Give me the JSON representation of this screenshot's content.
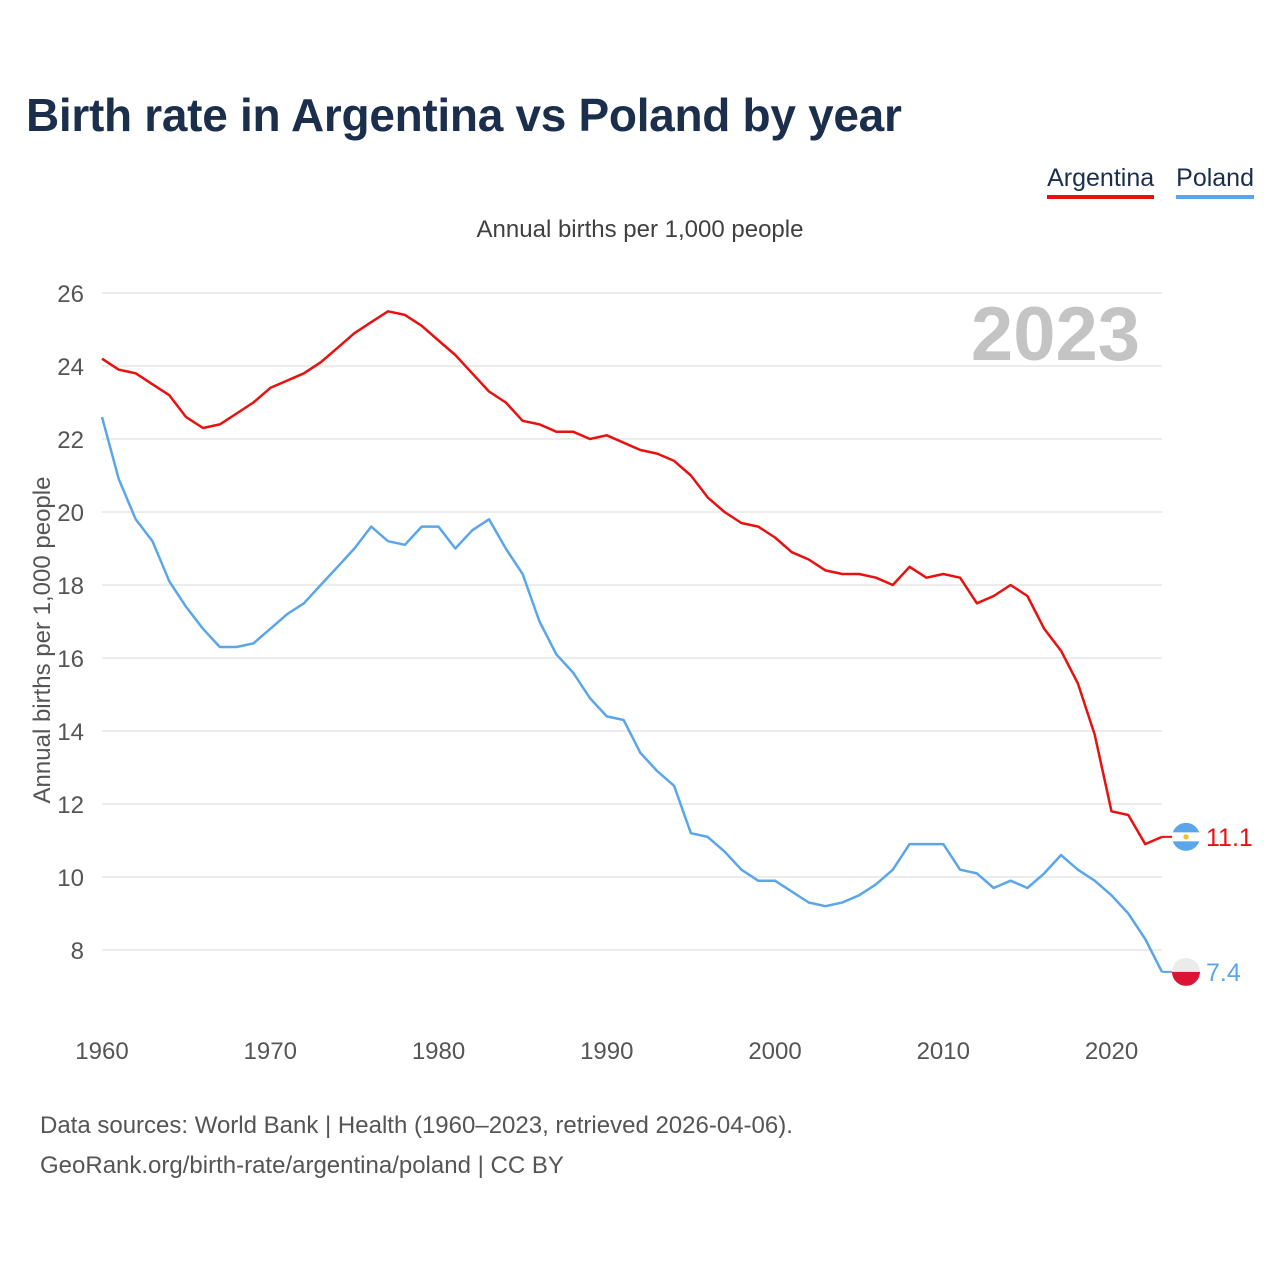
{
  "title": "Birth rate in Argentina vs Poland by year",
  "legend": {
    "argentina": "Argentina",
    "poland": "Poland"
  },
  "subtitle": "Annual births per 1,000 people",
  "year_label": "2023",
  "source": {
    "line1": "Data sources: World Bank | Health (1960–2023, retrieved 2026-04-06).",
    "line2": "GeoRank.org/birth-rate/argentina/poland | CC BY"
  },
  "colors": {
    "argentina": "#e8110f",
    "poland": "#5aa6e8",
    "grid": "#e6e6e6",
    "axis_text": "#555555",
    "year": "#c4c4c4"
  },
  "chart_data": {
    "type": "line",
    "title": "Birth rate in Argentina vs Poland by year",
    "xlabel": "",
    "ylabel": "Annual births per 1,000 people",
    "xlim": [
      1960,
      2023
    ],
    "ylim": [
      6.5,
      26
    ],
    "yticks": [
      8,
      10,
      12,
      14,
      16,
      18,
      20,
      22,
      24,
      26
    ],
    "xticks": [
      1960,
      1970,
      1980,
      1990,
      2000,
      2010,
      2020
    ],
    "x": [
      1960,
      1961,
      1962,
      1963,
      1964,
      1965,
      1966,
      1967,
      1968,
      1969,
      1970,
      1971,
      1972,
      1973,
      1974,
      1975,
      1976,
      1977,
      1978,
      1979,
      1980,
      1981,
      1982,
      1983,
      1984,
      1985,
      1986,
      1987,
      1988,
      1989,
      1990,
      1991,
      1992,
      1993,
      1994,
      1995,
      1996,
      1997,
      1998,
      1999,
      2000,
      2001,
      2002,
      2003,
      2004,
      2005,
      2006,
      2007,
      2008,
      2009,
      2010,
      2011,
      2012,
      2013,
      2014,
      2015,
      2016,
      2017,
      2018,
      2019,
      2020,
      2021,
      2022,
      2023
    ],
    "series": [
      {
        "name": "Argentina",
        "end_label": "11.1",
        "values": [
          24.2,
          23.9,
          23.8,
          23.5,
          23.2,
          22.6,
          22.3,
          22.4,
          22.7,
          23.0,
          23.4,
          23.6,
          23.8,
          24.1,
          24.5,
          24.9,
          25.2,
          25.5,
          25.4,
          25.1,
          24.7,
          24.3,
          23.8,
          23.3,
          23.0,
          22.5,
          22.4,
          22.2,
          22.2,
          22.0,
          22.1,
          21.9,
          21.7,
          21.6,
          21.4,
          21.0,
          20.4,
          20.0,
          19.7,
          19.6,
          19.3,
          18.9,
          18.7,
          18.4,
          18.3,
          18.3,
          18.2,
          18.0,
          18.5,
          18.2,
          18.3,
          18.2,
          17.5,
          17.7,
          18.0,
          17.7,
          16.8,
          16.2,
          15.3,
          13.9,
          11.8,
          11.7,
          10.9,
          11.1
        ]
      },
      {
        "name": "Poland",
        "end_label": "7.4",
        "values": [
          22.6,
          20.9,
          19.8,
          19.2,
          18.1,
          17.4,
          16.8,
          16.3,
          16.3,
          16.4,
          16.8,
          17.2,
          17.5,
          18.0,
          18.5,
          19.0,
          19.6,
          19.2,
          19.1,
          19.6,
          19.6,
          19.0,
          19.5,
          19.8,
          19.0,
          18.3,
          17.0,
          16.1,
          15.6,
          14.9,
          14.4,
          14.3,
          13.4,
          12.9,
          12.5,
          11.2,
          11.1,
          10.7,
          10.2,
          9.9,
          9.9,
          9.6,
          9.3,
          9.2,
          9.3,
          9.5,
          9.8,
          10.2,
          10.9,
          10.9,
          10.9,
          10.2,
          10.1,
          9.7,
          9.9,
          9.7,
          10.1,
          10.6,
          10.2,
          9.9,
          9.5,
          9.0,
          8.3,
          7.4
        ]
      }
    ]
  }
}
